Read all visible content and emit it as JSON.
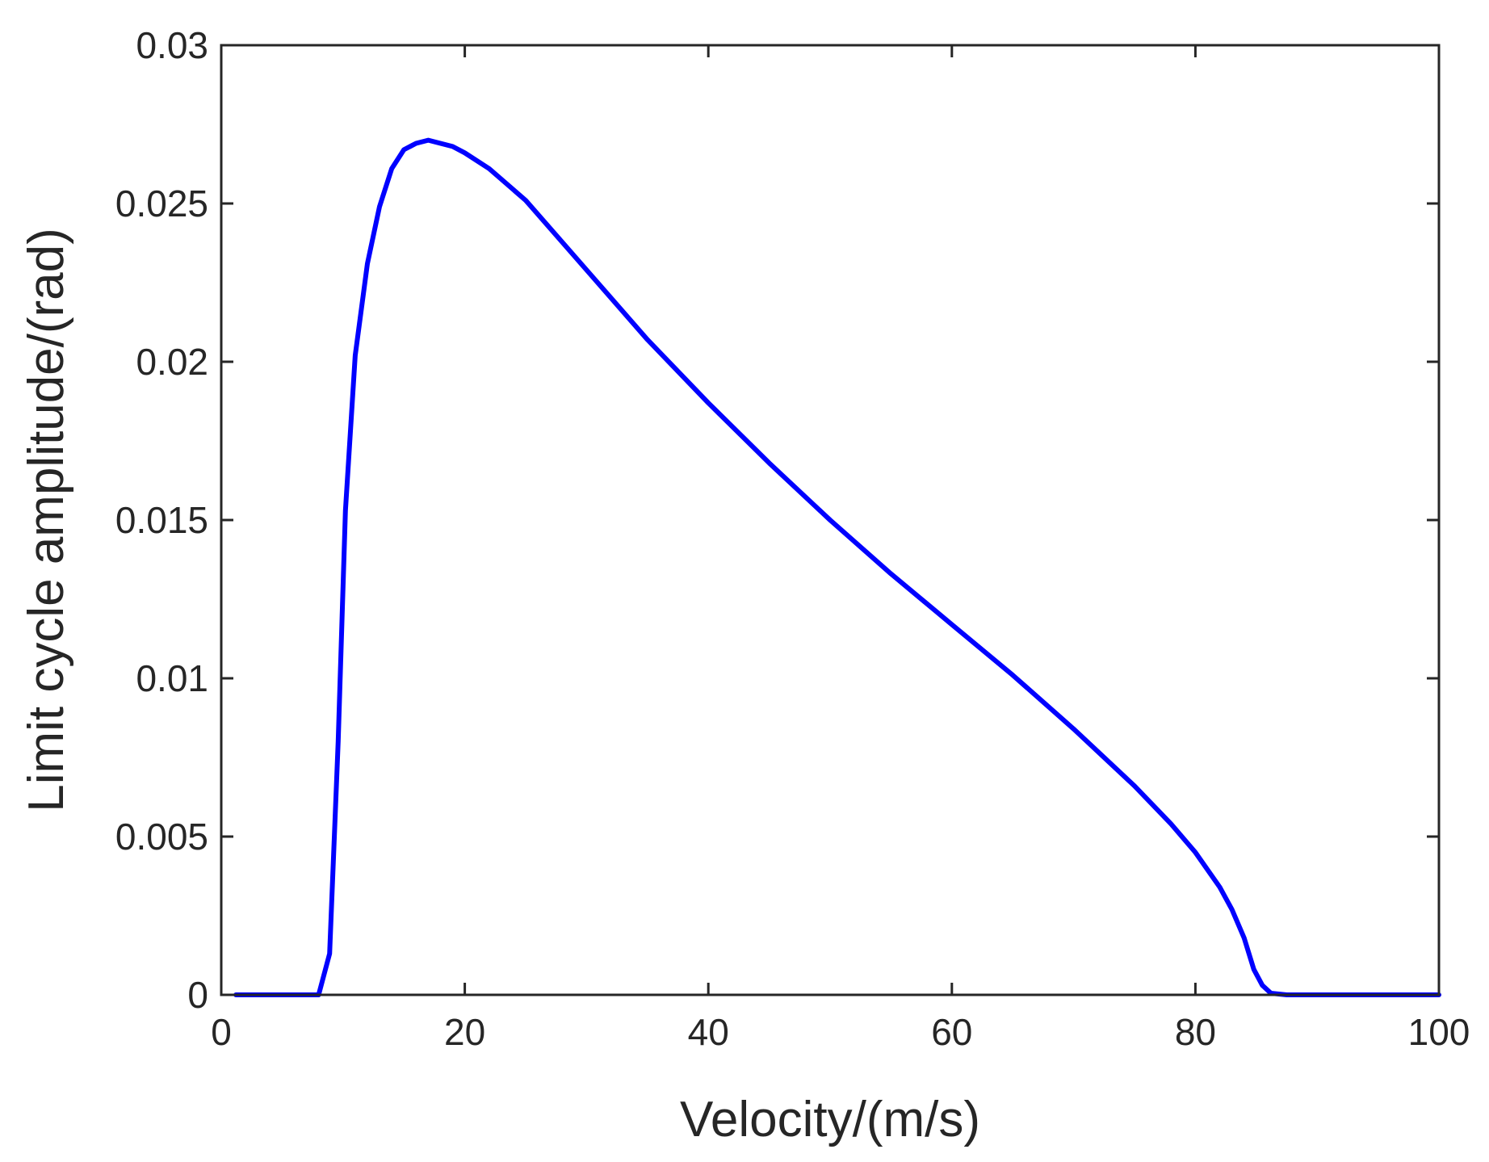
{
  "chart_data": {
    "type": "line",
    "title": "",
    "xlabel": "Velocity/(m/s)",
    "ylabel": "Limit cycle amplitude/(rad)",
    "xlim": [
      0,
      100
    ],
    "ylim": [
      0,
      0.03
    ],
    "grid": false,
    "x_ticks": [
      0,
      20,
      40,
      60,
      80,
      100
    ],
    "x_tick_labels": [
      "0",
      "20",
      "40",
      "60",
      "80",
      "100"
    ],
    "y_ticks": [
      0,
      0.005,
      0.01,
      0.015,
      0.02,
      0.025,
      0.03
    ],
    "y_tick_labels": [
      "0",
      "0.005",
      "0.01",
      "0.015",
      "0.02",
      "0.025",
      "0.03"
    ],
    "series": [
      {
        "name": "Limit cycle amplitude",
        "color": "#0000ff",
        "x": [
          1.2,
          8.0,
          8.9,
          9.6,
          10.2,
          11.0,
          12.0,
          13.0,
          14.0,
          15.0,
          16.0,
          17.0,
          18.0,
          19.0,
          20.0,
          22.0,
          25.0,
          30.0,
          35.0,
          40.0,
          45.0,
          50.0,
          55.0,
          60.0,
          65.0,
          70.0,
          75.0,
          78.0,
          80.0,
          82.0,
          83.0,
          84.0,
          84.8,
          85.5,
          86.2,
          87.5,
          90.0,
          95.0,
          100.0
        ],
        "y": [
          0.0,
          0.0,
          0.0013,
          0.008,
          0.0153,
          0.0202,
          0.0231,
          0.0249,
          0.0261,
          0.0267,
          0.0269,
          0.027,
          0.0269,
          0.0268,
          0.0266,
          0.0261,
          0.0251,
          0.0229,
          0.0207,
          0.0187,
          0.0168,
          0.015,
          0.0133,
          0.0117,
          0.0101,
          0.0084,
          0.0066,
          0.0054,
          0.0045,
          0.0034,
          0.0027,
          0.0018,
          0.0008,
          0.0003,
          5e-05,
          0.0,
          0.0,
          0.0,
          0.0
        ]
      }
    ]
  }
}
